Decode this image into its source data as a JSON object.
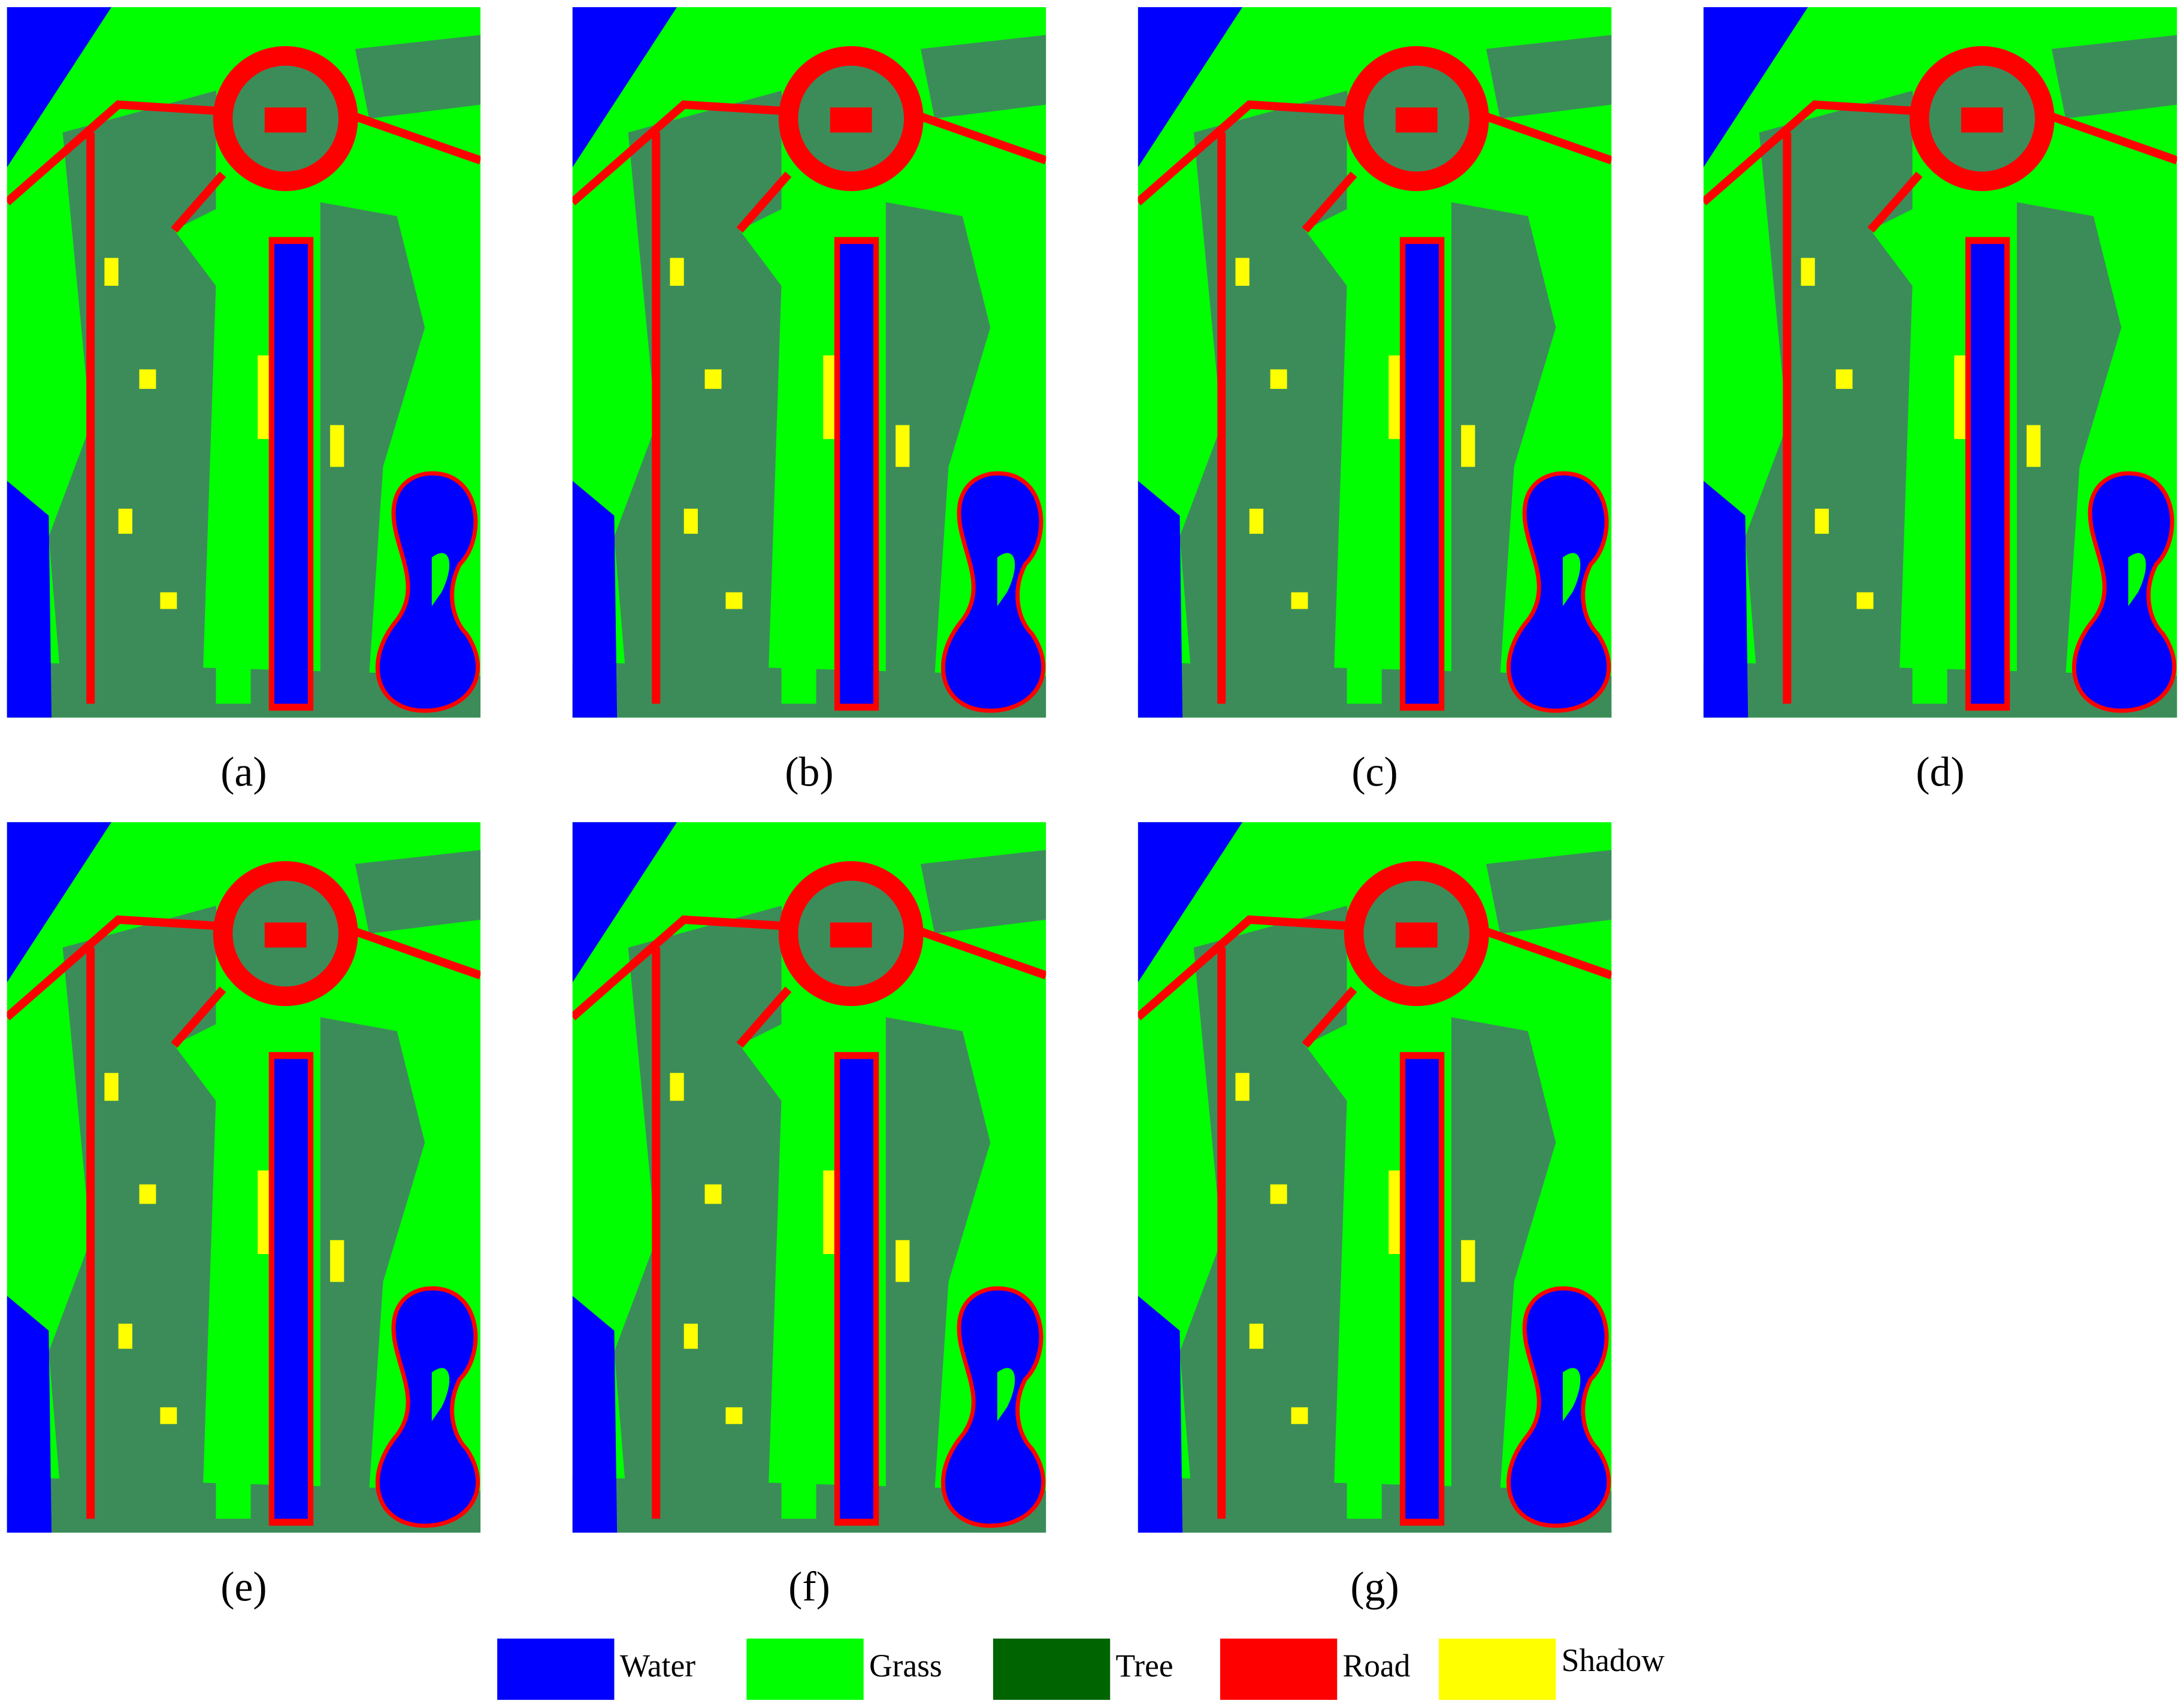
{
  "panels": [
    {
      "label": "(a)"
    },
    {
      "label": "(b)"
    },
    {
      "label": "(c)"
    },
    {
      "label": "(d)"
    },
    {
      "label": "(e)"
    },
    {
      "label": "(f)"
    },
    {
      "label": "(g)"
    }
  ],
  "legend": [
    {
      "label": "Water",
      "color": "#0000ff"
    },
    {
      "label": "Grass",
      "color": "#00ff00"
    },
    {
      "label": "Tree",
      "color": "#006400"
    },
    {
      "label": "Road",
      "color": "#ff0000"
    },
    {
      "label": "Shadow",
      "color": "#ffff00"
    }
  ]
}
